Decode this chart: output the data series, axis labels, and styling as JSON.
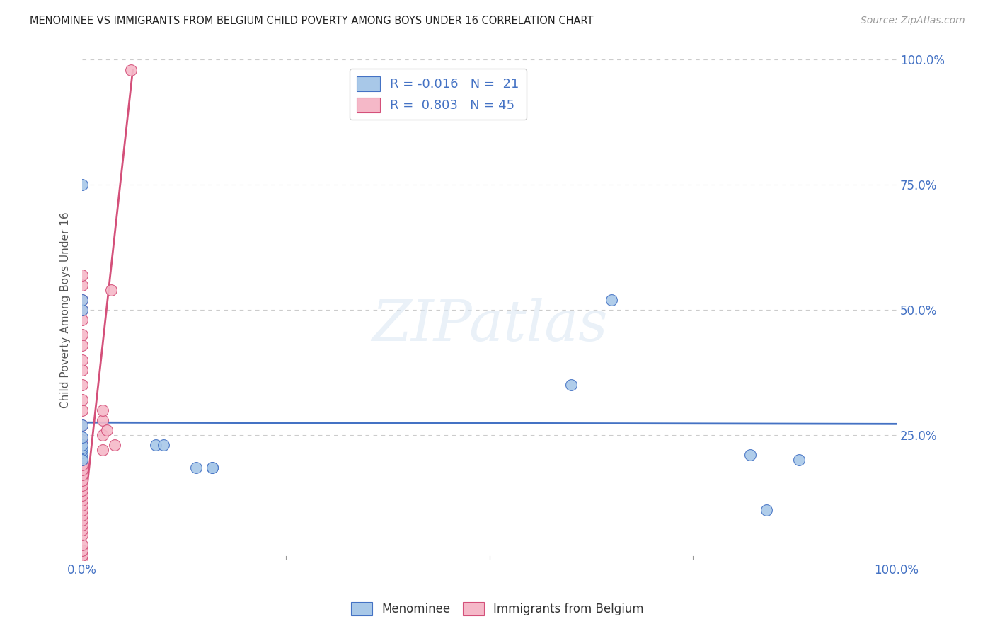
{
  "title": "MENOMINEE VS IMMIGRANTS FROM BELGIUM CHILD POVERTY AMONG BOYS UNDER 16 CORRELATION CHART",
  "source": "Source: ZipAtlas.com",
  "ylabel": "Child Poverty Among Boys Under 16",
  "xlim": [
    0.0,
    1.0
  ],
  "ylim": [
    0.0,
    1.0
  ],
  "xticks": [
    0.0,
    0.25,
    0.5,
    0.75,
    1.0
  ],
  "yticks": [
    0.0,
    0.25,
    0.5,
    0.75,
    1.0
  ],
  "xtick_labels": [
    "0.0%",
    "",
    "",
    "",
    "100.0%"
  ],
  "ytick_labels_right": [
    "",
    "25.0%",
    "50.0%",
    "75.0%",
    "100.0%"
  ],
  "background_color": "#ffffff",
  "grid_color": "#cccccc",
  "watermark": "ZIPatlas",
  "legend_r1": "R = -0.016",
  "legend_n1": "N =  21",
  "legend_r2": "R =  0.803",
  "legend_n2": "N = 45",
  "blue_color": "#a8c8e8",
  "pink_color": "#f5b8c8",
  "trend_blue": "#4472c4",
  "trend_pink": "#d4507a",
  "menominee_x": [
    0.0,
    0.0,
    0.0,
    0.0,
    0.0,
    0.0,
    0.0,
    0.0,
    0.0,
    0.0,
    0.0,
    0.09,
    0.1,
    0.14,
    0.16,
    0.16,
    0.6,
    0.65,
    0.82,
    0.84,
    0.88
  ],
  "menominee_y": [
    0.205,
    0.215,
    0.22,
    0.225,
    0.23,
    0.245,
    0.27,
    0.5,
    0.52,
    0.75,
    0.2,
    0.23,
    0.23,
    0.185,
    0.185,
    0.185,
    0.35,
    0.52,
    0.21,
    0.1,
    0.2
  ],
  "belgium_x": [
    0.0,
    0.0,
    0.0,
    0.0,
    0.0,
    0.0,
    0.0,
    0.0,
    0.0,
    0.0,
    0.0,
    0.0,
    0.0,
    0.0,
    0.0,
    0.0,
    0.0,
    0.0,
    0.0,
    0.0,
    0.0,
    0.0,
    0.0,
    0.0,
    0.0,
    0.0,
    0.0,
    0.0,
    0.0,
    0.0,
    0.0,
    0.0,
    0.0,
    0.0,
    0.0,
    0.0,
    0.0,
    0.025,
    0.025,
    0.025,
    0.025,
    0.03,
    0.035,
    0.04,
    0.06
  ],
  "belgium_y": [
    0.0,
    0.01,
    0.02,
    0.03,
    0.05,
    0.06,
    0.07,
    0.08,
    0.09,
    0.1,
    0.11,
    0.12,
    0.13,
    0.14,
    0.15,
    0.16,
    0.17,
    0.18,
    0.19,
    0.2,
    0.21,
    0.22,
    0.23,
    0.24,
    0.27,
    0.3,
    0.32,
    0.35,
    0.38,
    0.4,
    0.43,
    0.45,
    0.48,
    0.5,
    0.52,
    0.55,
    0.57,
    0.22,
    0.25,
    0.28,
    0.3,
    0.26,
    0.54,
    0.23,
    0.98
  ],
  "blue_trend_x": [
    0.0,
    1.0
  ],
  "blue_trend_y": [
    0.275,
    0.272
  ],
  "pink_trend_x": [
    0.0,
    0.062
  ],
  "pink_trend_y": [
    0.06,
    0.98
  ]
}
